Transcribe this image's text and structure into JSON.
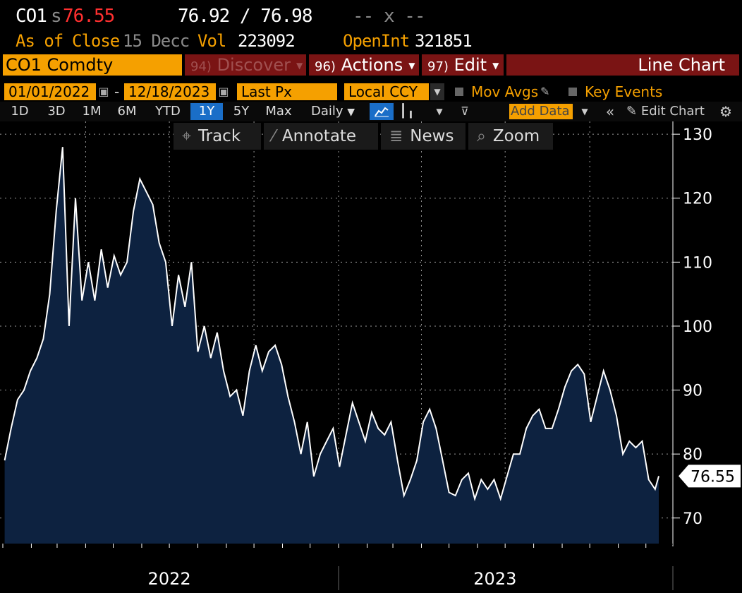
{
  "header": {
    "ticker": "CO1",
    "price_prefix": "s",
    "last_price": "76.55",
    "bid_ask": "76.92 / 76.98",
    "change": "-- x --",
    "as_of_label": "As of",
    "close_label": "Close",
    "date": "15 Decc",
    "vol_label": "Vol",
    "vol": "223092",
    "openint_label": "OpenInt",
    "openint": "321851"
  },
  "cmdbar": {
    "security": "CO1 Comdty",
    "discover_num": "94)",
    "discover": "Discover",
    "actions_num": "96)",
    "actions": "Actions",
    "edit_num": "97)",
    "edit": "Edit",
    "title": "Line Chart"
  },
  "params": {
    "start_date": "01/01/2022",
    "dash": "-",
    "end_date": "12/18/2023",
    "field": "Last Px",
    "currency": "Local CCY",
    "mov_avgs": "Mov Avgs",
    "key_events": "Key Events"
  },
  "ranges": {
    "items": [
      "1D",
      "3D",
      "1M",
      "6M",
      "YTD",
      "1Y",
      "5Y",
      "Max"
    ],
    "active": "1Y",
    "frequency": "Daily",
    "add_data": "Add Data",
    "edit_chart": "Edit Chart"
  },
  "toolbar": {
    "track": "Track",
    "annotate": "Annotate",
    "news": "News",
    "zoom": "Zoom"
  },
  "colors": {
    "line": "#ffffff",
    "fill": "#0d2240",
    "accent": "#f5a000",
    "price": "#ff3030"
  },
  "chart_data": {
    "type": "area",
    "series": [
      {
        "x": [
          "2022-01-03",
          "2022-01-10",
          "2022-01-17",
          "2022-01-24",
          "2022-01-31",
          "2022-02-07",
          "2022-02-14",
          "2022-02-21",
          "2022-02-28",
          "2022-03-07",
          "2022-03-14",
          "2022-03-21",
          "2022-03-28",
          "2022-04-04",
          "2022-04-11",
          "2022-04-18",
          "2022-04-25",
          "2022-05-02",
          "2022-05-09",
          "2022-05-16",
          "2022-05-23",
          "2022-05-30",
          "2022-06-06",
          "2022-06-13",
          "2022-06-20",
          "2022-06-27",
          "2022-07-04",
          "2022-07-11",
          "2022-07-18",
          "2022-07-25",
          "2022-08-01",
          "2022-08-08",
          "2022-08-15",
          "2022-08-22",
          "2022-08-29",
          "2022-09-05",
          "2022-09-12",
          "2022-09-19",
          "2022-09-26",
          "2022-10-03",
          "2022-10-10",
          "2022-10-17",
          "2022-10-24",
          "2022-10-31",
          "2022-11-07",
          "2022-11-14",
          "2022-11-21",
          "2022-11-28",
          "2022-12-05",
          "2022-12-12",
          "2022-12-19",
          "2022-12-26",
          "2023-01-02",
          "2023-01-09",
          "2023-01-16",
          "2023-01-23",
          "2023-01-30",
          "2023-02-06",
          "2023-02-13",
          "2023-02-20",
          "2023-02-27",
          "2023-03-06",
          "2023-03-13",
          "2023-03-20",
          "2023-03-27",
          "2023-04-03",
          "2023-04-10",
          "2023-04-17",
          "2023-04-24",
          "2023-05-01",
          "2023-05-08",
          "2023-05-15",
          "2023-05-22",
          "2023-05-29",
          "2023-06-05",
          "2023-06-12",
          "2023-06-19",
          "2023-06-26",
          "2023-07-03",
          "2023-07-10",
          "2023-07-17",
          "2023-07-24",
          "2023-07-31",
          "2023-08-07",
          "2023-08-14",
          "2023-08-21",
          "2023-08-28",
          "2023-09-04",
          "2023-09-11",
          "2023-09-18",
          "2023-09-25",
          "2023-10-02",
          "2023-10-09",
          "2023-10-16",
          "2023-10-23",
          "2023-10-30",
          "2023-11-06",
          "2023-11-13",
          "2023-11-20",
          "2023-11-27",
          "2023-12-04",
          "2023-12-11",
          "2023-12-15"
        ],
        "y": [
          79.0,
          84.0,
          88.5,
          90.0,
          93.0,
          95.0,
          98.0,
          105.0,
          118.0,
          128.0,
          100.0,
          120.0,
          104.0,
          110.0,
          104.0,
          112.0,
          106.0,
          111.0,
          108.0,
          110.0,
          118.0,
          123.0,
          121.0,
          119.0,
          113.0,
          110.0,
          100.0,
          108.0,
          103.0,
          110.0,
          96.0,
          100.0,
          95.0,
          99.0,
          93.0,
          89.0,
          90.0,
          86.0,
          93.0,
          97.0,
          93.0,
          96.0,
          97.0,
          94.0,
          89.0,
          85.0,
          80.0,
          85.0,
          76.5,
          80.0,
          82.0,
          84.0,
          78.0,
          83.0,
          88.0,
          85.0,
          82.0,
          86.5,
          84.0,
          83.0,
          85.0,
          79.0,
          73.5,
          76.0,
          79.0,
          85.0,
          87.0,
          84.0,
          79.0,
          74.0,
          73.5,
          76.0,
          77.0,
          73.0,
          76.0,
          74.5,
          76.0,
          73.0,
          76.5,
          80.0,
          80.0,
          84.0,
          86.0,
          87.0,
          84.0,
          84.0,
          87.0,
          90.5,
          93.0,
          94.0,
          92.5,
          85.0,
          89.0,
          93.0,
          90.0,
          86.0,
          80.0,
          82.0,
          81.0,
          82.0,
          76.0,
          74.5,
          76.55
        ]
      }
    ],
    "ylim": [
      66,
      132
    ],
    "yticks": [
      70,
      80,
      90,
      100,
      110,
      120,
      130
    ],
    "xticks": [
      "2022",
      "2023"
    ],
    "last_value_label": "76.55",
    "grid": true,
    "y_axis_position": "right"
  }
}
